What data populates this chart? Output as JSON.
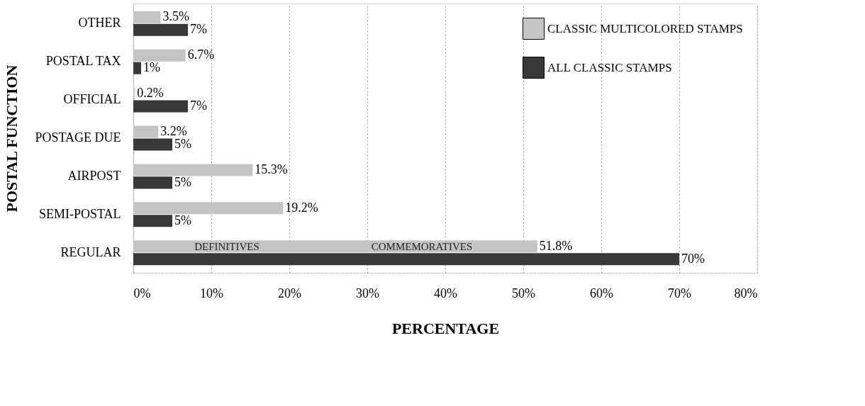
{
  "chart_data": {
    "type": "bar",
    "orientation": "horizontal",
    "xlabel": "PERCENTAGE",
    "ylabel": "POSTAL  FUNCTION",
    "categories": [
      "OTHER",
      "POSTAL TAX",
      "OFFICIAL",
      "POSTAGE DUE",
      "AIRPOST",
      "SEMI-POSTAL",
      "REGULAR"
    ],
    "series": [
      {
        "name": "CLASSIC MULTICOLORED STAMPS",
        "color": "#c4c4c4",
        "values": [
          3.5,
          6.7,
          0.2,
          3.2,
          15.3,
          19.2,
          51.8
        ],
        "value_labels": [
          "3.5%",
          "6.7%",
          "0.2%",
          "3.2%",
          "15.3%",
          "19.2%",
          "51.8%"
        ]
      },
      {
        "name": "ALL CLASSIC STAMPS",
        "color": "#383838",
        "values": [
          7,
          1,
          7,
          5,
          5,
          5,
          70
        ],
        "value_labels": [
          "7%",
          "1%",
          "7%",
          "5%",
          "5%",
          "5%",
          "70%"
        ]
      }
    ],
    "xlim": [
      0,
      80
    ],
    "xticks": [
      {
        "value": 0,
        "label": "0%"
      },
      {
        "value": 10,
        "label": "10%"
      },
      {
        "value": 20,
        "label": "20%"
      },
      {
        "value": 30,
        "label": "30%"
      },
      {
        "value": 40,
        "label": "40%"
      },
      {
        "value": 50,
        "label": "50%"
      },
      {
        "value": 60,
        "label": "60%"
      },
      {
        "value": 70,
        "label": "70%"
      },
      {
        "value": 80,
        "label": "80%"
      }
    ],
    "annotations": [
      {
        "text": "DEFINITIVES",
        "x": 12,
        "y": "REGULAR"
      },
      {
        "text": "COMMEMORATIVES",
        "x": 37,
        "y": "REGULAR"
      }
    ],
    "grid": "x",
    "legend": "top right"
  }
}
